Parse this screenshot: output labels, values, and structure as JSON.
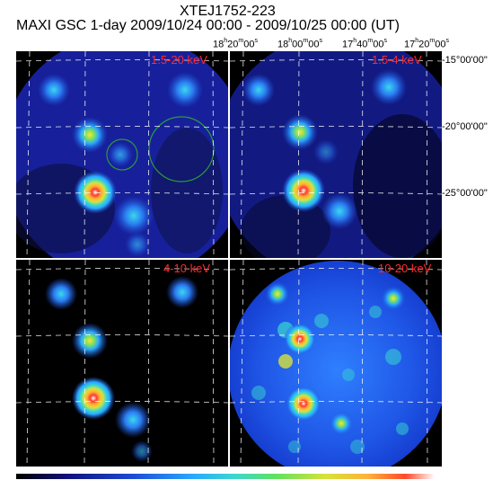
{
  "header": {
    "object": "XTEJ1752-223",
    "subtitle": "MAXI GSC 1-day 2009/10/24 00:00 - 2009/10/25 00:00 (UT)"
  },
  "axes": {
    "ra_ticks": [
      "18h20m00s",
      "18h00m00s",
      "17h40m00s",
      "17h20m00s"
    ],
    "dec_ticks": [
      "-15°00'00\"",
      "-20°00'00\"",
      "-25°00'00\""
    ]
  },
  "panels": [
    {
      "energy_label": "1.5-20 keV"
    },
    {
      "energy_label": "1.5-4 keV"
    },
    {
      "energy_label": "4-10 keV"
    },
    {
      "energy_label": "10-20 keV"
    }
  ],
  "colors": {
    "background": "#000000",
    "grid": "#ffffff",
    "label": "#ff2a2a",
    "circle": "#2a9d3a"
  }
}
